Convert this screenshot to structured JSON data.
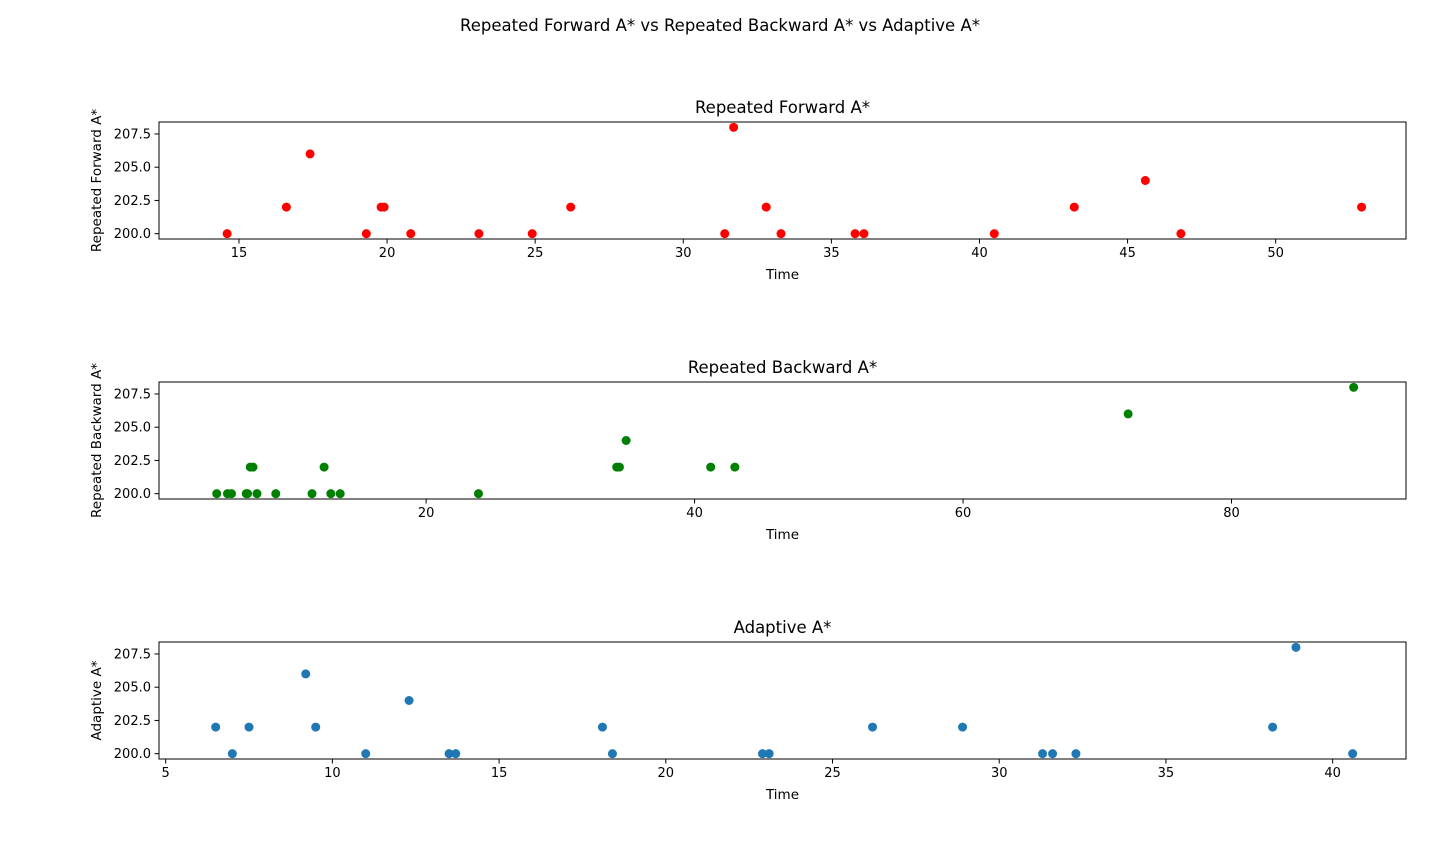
{
  "figure": {
    "suptitle": "Repeated Forward A* vs Repeated Backward A* vs Adaptive A*"
  },
  "chart_data": [
    {
      "type": "scatter",
      "title": "Repeated Forward A*",
      "xlabel": "Time",
      "ylabel": "Repeated Forward A*",
      "color": "#ff0000",
      "xlim": [
        12.3,
        54.4
      ],
      "ylim": [
        199.6,
        208.4
      ],
      "xticks": [
        15,
        20,
        25,
        30,
        35,
        40,
        45,
        50
      ],
      "yticks": [
        200.0,
        202.5,
        205.0,
        207.5
      ],
      "x": [
        14.6,
        16.6,
        17.4,
        19.3,
        19.8,
        19.9,
        20.8,
        23.1,
        24.9,
        26.2,
        31.4,
        31.7,
        32.8,
        33.3,
        35.8,
        36.1,
        40.5,
        43.2,
        45.6,
        46.8,
        52.9
      ],
      "y": [
        200,
        202,
        206,
        200,
        202,
        202,
        200,
        200,
        200,
        202,
        200,
        208,
        202,
        200,
        200,
        200,
        200,
        202,
        204,
        200,
        202
      ]
    },
    {
      "type": "scatter",
      "title": "Repeated Backward A*",
      "xlabel": "Time",
      "ylabel": "Repeated Backward A*",
      "color": "#008000",
      "xlim": [
        0.1,
        93.0
      ],
      "ylim": [
        199.6,
        208.4
      ],
      "xticks": [
        20,
        40,
        60,
        80
      ],
      "yticks": [
        200.0,
        202.5,
        205.0,
        207.5
      ],
      "x": [
        4.4,
        5.2,
        5.5,
        6.6,
        6.7,
        6.9,
        7.1,
        7.4,
        8.8,
        11.5,
        12.4,
        12.9,
        13.6,
        23.9,
        34.2,
        34.4,
        34.9,
        41.2,
        43.0,
        72.3,
        89.1
      ],
      "y": [
        200,
        200,
        200,
        200,
        200,
        202,
        202,
        200,
        200,
        200,
        202,
        200,
        200,
        200,
        202,
        202,
        204,
        202,
        202,
        206,
        208
      ]
    },
    {
      "type": "scatter",
      "title": "Adaptive A*",
      "xlabel": "Time",
      "ylabel": "Adaptive A*",
      "color": "#1f77b4",
      "xlim": [
        4.8,
        42.2
      ],
      "ylim": [
        199.6,
        208.4
      ],
      "xticks": [
        5,
        10,
        15,
        20,
        25,
        30,
        35,
        40
      ],
      "yticks": [
        200.0,
        202.5,
        205.0,
        207.5
      ],
      "x": [
        6.5,
        7.0,
        7.5,
        9.2,
        9.5,
        11.0,
        12.3,
        13.5,
        13.7,
        18.1,
        18.4,
        22.9,
        23.1,
        26.2,
        28.9,
        31.3,
        31.6,
        32.3,
        38.2,
        38.9,
        40.6
      ],
      "y": [
        202,
        200,
        202,
        206,
        202,
        200,
        204,
        200,
        200,
        202,
        200,
        200,
        200,
        202,
        202,
        200,
        200,
        200,
        202,
        208,
        200
      ]
    }
  ]
}
